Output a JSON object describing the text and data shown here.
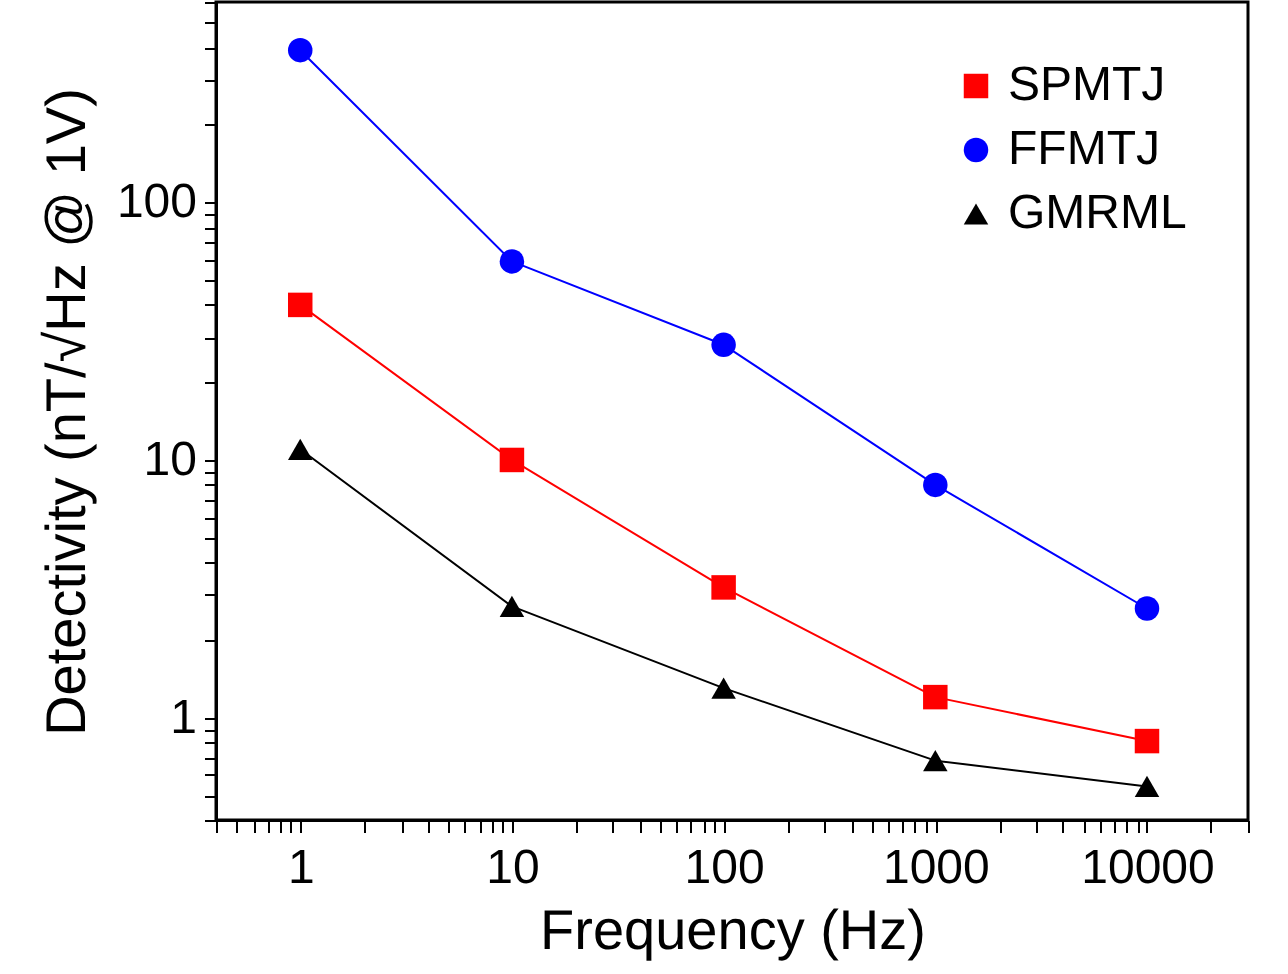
{
  "chart_data": {
    "type": "line",
    "xlabel": "Frequency (Hz)",
    "ylabel": "Detectivity (nT/√Hz @ 1V)",
    "log": "xy",
    "legend": "top right",
    "x": [
      1,
      10,
      100,
      1000,
      10000
    ],
    "xlim": [
      0.4,
      30000
    ],
    "ylim": [
      0.4,
      600
    ],
    "xticks": [
      {
        "value": 0.4,
        "label": null
      },
      {
        "value": 0.5,
        "label": null
      },
      {
        "value": 0.6,
        "label": null
      },
      {
        "value": 0.7,
        "label": null
      },
      {
        "value": 0.8,
        "label": null
      },
      {
        "value": 0.9,
        "label": null
      },
      1,
      {
        "value": 2,
        "label": null
      },
      {
        "value": 3,
        "label": null
      },
      {
        "value": 4,
        "label": null
      },
      {
        "value": 5,
        "label": null
      },
      {
        "value": 6,
        "label": null
      },
      {
        "value": 7,
        "label": null
      },
      {
        "value": 8,
        "label": null
      },
      {
        "value": 9,
        "label": null
      },
      10,
      {
        "value": 20,
        "label": null
      },
      {
        "value": 30,
        "label": null
      },
      {
        "value": 40,
        "label": null
      },
      {
        "value": 50,
        "label": null
      },
      {
        "value": 60,
        "label": null
      },
      {
        "value": 70,
        "label": null
      },
      {
        "value": 80,
        "label": null
      },
      {
        "value": 90,
        "label": null
      },
      100,
      {
        "value": 200,
        "label": null
      },
      {
        "value": 300,
        "label": null
      },
      {
        "value": 400,
        "label": null
      },
      {
        "value": 500,
        "label": null
      },
      {
        "value": 600,
        "label": null
      },
      {
        "value": 700,
        "label": null
      },
      {
        "value": 800,
        "label": null
      },
      {
        "value": 900,
        "label": null
      },
      1000,
      {
        "value": 2000,
        "label": null
      },
      {
        "value": 3000,
        "label": null
      },
      {
        "value": 4000,
        "label": null
      },
      {
        "value": 5000,
        "label": null
      },
      {
        "value": 6000,
        "label": null
      },
      {
        "value": 7000,
        "label": null
      },
      {
        "value": 8000,
        "label": null
      },
      {
        "value": 9000,
        "label": null
      },
      10000,
      {
        "value": 20000,
        "label": null
      },
      {
        "value": 30000,
        "label": null
      }
    ],
    "yticks": [
      {
        "value": 0.4,
        "label": null
      },
      {
        "value": 0.5,
        "label": null
      },
      {
        "value": 0.6,
        "label": null
      },
      {
        "value": 0.7,
        "label": null
      },
      {
        "value": 0.8,
        "label": null
      },
      {
        "value": 0.9,
        "label": null
      },
      1,
      {
        "value": 2,
        "label": null
      },
      {
        "value": 3,
        "label": null
      },
      {
        "value": 4,
        "label": null
      },
      {
        "value": 5,
        "label": null
      },
      {
        "value": 6,
        "label": null
      },
      {
        "value": 7,
        "label": null
      },
      {
        "value": 8,
        "label": null
      },
      {
        "value": 9,
        "label": null
      },
      10,
      {
        "value": 20,
        "label": null
      },
      {
        "value": 30,
        "label": null
      },
      {
        "value": 40,
        "label": null
      },
      {
        "value": 50,
        "label": null
      },
      {
        "value": 60,
        "label": null
      },
      {
        "value": 70,
        "label": null
      },
      {
        "value": 80,
        "label": null
      },
      {
        "value": 90,
        "label": null
      },
      100,
      {
        "value": 200,
        "label": null
      },
      {
        "value": 300,
        "label": null
      },
      {
        "value": 400,
        "label": null
      },
      {
        "value": 500,
        "label": null
      },
      {
        "value": 600,
        "label": null
      }
    ],
    "series": [
      {
        "name": "SPMTJ",
        "color": "#ff0000",
        "marker": "square",
        "values": [
          40,
          10,
          3.2,
          1.2,
          0.81
        ]
      },
      {
        "name": "FFMTJ",
        "color": "#0000ff",
        "marker": "circle",
        "values": [
          390,
          59,
          28,
          8.0,
          2.65
        ]
      },
      {
        "name": "GMRML",
        "color": "#000000",
        "marker": "triangle",
        "values": [
          11,
          2.7,
          1.3,
          0.68,
          0.54
        ]
      }
    ]
  }
}
